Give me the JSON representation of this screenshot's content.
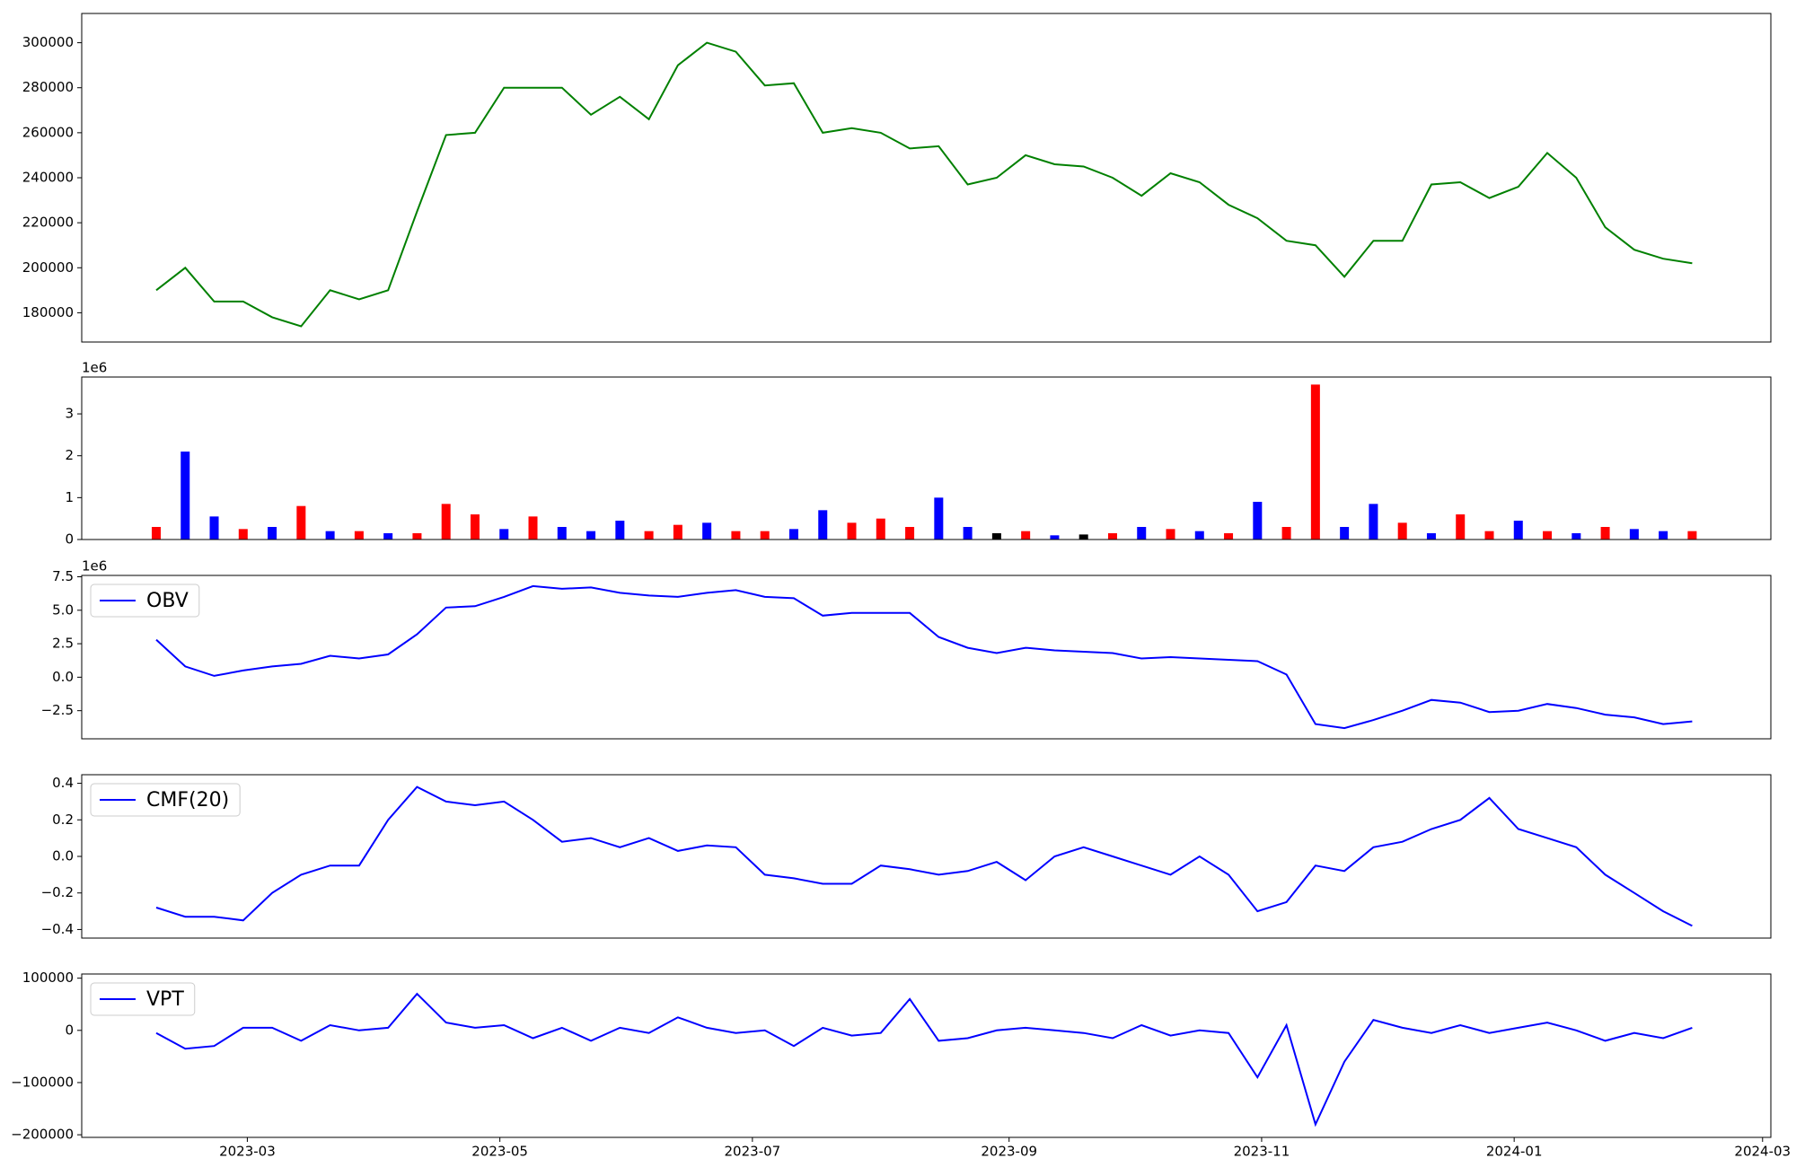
{
  "chart_data": [
    {
      "type": "line",
      "x": [
        "2023-02-07",
        "2023-02-14",
        "2023-02-21",
        "2023-02-28",
        "2023-03-07",
        "2023-03-14",
        "2023-03-21",
        "2023-03-28",
        "2023-04-04",
        "2023-04-11",
        "2023-04-18",
        "2023-04-25",
        "2023-05-02",
        "2023-05-09",
        "2023-05-16",
        "2023-05-23",
        "2023-05-30",
        "2023-06-06",
        "2023-06-13",
        "2023-06-20",
        "2023-06-27",
        "2023-07-04",
        "2023-07-11",
        "2023-07-18",
        "2023-07-25",
        "2023-08-01",
        "2023-08-08",
        "2023-08-15",
        "2023-08-22",
        "2023-08-29",
        "2023-09-05",
        "2023-09-12",
        "2023-09-19",
        "2023-09-26",
        "2023-10-03",
        "2023-10-10",
        "2023-10-17",
        "2023-10-24",
        "2023-10-31",
        "2023-11-07",
        "2023-11-14",
        "2023-11-21",
        "2023-11-28",
        "2023-12-05",
        "2023-12-12",
        "2023-12-19",
        "2023-12-26",
        "2024-01-02",
        "2024-01-09",
        "2024-01-16",
        "2024-01-23",
        "2024-01-30",
        "2024-02-06",
        "2024-02-13"
      ],
      "series": [
        {
          "color": "#008000",
          "values": [
            190000,
            200000,
            185000,
            185000,
            178000,
            174000,
            190000,
            186000,
            190000,
            225000,
            259000,
            260000,
            280000,
            280000,
            280000,
            268000,
            276000,
            266000,
            290000,
            300000,
            296000,
            281000,
            282000,
            260000,
            262000,
            260000,
            253000,
            254000,
            237000,
            240000,
            250000,
            246000,
            245000,
            240000,
            232000,
            242000,
            238000,
            228000,
            222000,
            212000,
            210000,
            196000,
            212000,
            212000,
            237000,
            238000,
            231000,
            236000,
            251000,
            240000,
            218000,
            208000,
            204000,
            202000
          ]
        }
      ],
      "xlim": [
        "2023-01-20",
        "2024-03-03"
      ],
      "ylim": [
        167000,
        313000
      ],
      "yticks": [
        180000,
        200000,
        220000,
        240000,
        260000,
        280000,
        300000
      ]
    },
    {
      "type": "bar",
      "x": [
        "2023-02-07",
        "2023-02-14",
        "2023-02-21",
        "2023-02-28",
        "2023-03-07",
        "2023-03-14",
        "2023-03-21",
        "2023-03-28",
        "2023-04-04",
        "2023-04-11",
        "2023-04-18",
        "2023-04-25",
        "2023-05-02",
        "2023-05-09",
        "2023-05-16",
        "2023-05-23",
        "2023-05-30",
        "2023-06-06",
        "2023-06-13",
        "2023-06-20",
        "2023-06-27",
        "2023-07-04",
        "2023-07-11",
        "2023-07-18",
        "2023-07-25",
        "2023-08-01",
        "2023-08-08",
        "2023-08-15",
        "2023-08-22",
        "2023-08-29",
        "2023-09-05",
        "2023-09-12",
        "2023-09-19",
        "2023-09-26",
        "2023-10-03",
        "2023-10-10",
        "2023-10-17",
        "2023-10-24",
        "2023-10-31",
        "2023-11-07",
        "2023-11-14",
        "2023-11-21",
        "2023-11-28",
        "2023-12-05",
        "2023-12-12",
        "2023-12-19",
        "2023-12-26",
        "2024-01-02",
        "2024-01-09",
        "2024-01-16",
        "2024-01-23",
        "2024-01-30",
        "2024-02-06",
        "2024-02-13"
      ],
      "series": [
        {
          "values": [
            300000,
            2100000,
            550000,
            250000,
            300000,
            800000,
            200000,
            200000,
            150000,
            150000,
            850000,
            600000,
            250000,
            550000,
            300000,
            200000,
            450000,
            200000,
            350000,
            400000,
            200000,
            200000,
            250000,
            700000,
            400000,
            500000,
            300000,
            1000000,
            300000,
            150000,
            200000,
            100000,
            120000,
            150000,
            300000,
            250000,
            200000,
            150000,
            900000,
            300000,
            3700000,
            300000,
            850000,
            400000,
            150000,
            600000,
            200000,
            450000,
            200000,
            150000,
            300000,
            250000,
            200000,
            200000
          ],
          "colors": [
            "#ff0000",
            "#0000ff",
            "#0000ff",
            "#ff0000",
            "#0000ff",
            "#ff0000",
            "#0000ff",
            "#ff0000",
            "#0000ff",
            "#ff0000",
            "#ff0000",
            "#ff0000",
            "#0000ff",
            "#ff0000",
            "#0000ff",
            "#0000ff",
            "#0000ff",
            "#ff0000",
            "#ff0000",
            "#0000ff",
            "#ff0000",
            "#ff0000",
            "#0000ff",
            "#0000ff",
            "#ff0000",
            "#ff0000",
            "#ff0000",
            "#0000ff",
            "#0000ff",
            "#000000",
            "#ff0000",
            "#0000ff",
            "#000000",
            "#ff0000",
            "#0000ff",
            "#ff0000",
            "#0000ff",
            "#ff0000",
            "#0000ff",
            "#ff0000",
            "#ff0000",
            "#0000ff",
            "#0000ff",
            "#ff0000",
            "#0000ff",
            "#ff0000",
            "#ff0000",
            "#0000ff",
            "#ff0000",
            "#0000ff",
            "#ff0000",
            "#0000ff",
            "#0000ff",
            "#ff0000"
          ]
        }
      ],
      "xlim": [
        "2023-01-20",
        "2024-03-03"
      ],
      "ylim": [
        0,
        3880000
      ],
      "offset_text": "1e6",
      "yticks": [
        {
          "value": 0,
          "label": "0"
        },
        {
          "value": 1000000,
          "label": "1"
        },
        {
          "value": 2000000,
          "label": "2"
        },
        {
          "value": 3000000,
          "label": "3"
        }
      ]
    },
    {
      "type": "line",
      "x": [
        "2023-02-07",
        "2023-02-14",
        "2023-02-21",
        "2023-02-28",
        "2023-03-07",
        "2023-03-14",
        "2023-03-21",
        "2023-03-28",
        "2023-04-04",
        "2023-04-11",
        "2023-04-18",
        "2023-04-25",
        "2023-05-02",
        "2023-05-09",
        "2023-05-16",
        "2023-05-23",
        "2023-05-30",
        "2023-06-06",
        "2023-06-13",
        "2023-06-20",
        "2023-06-27",
        "2023-07-04",
        "2023-07-11",
        "2023-07-18",
        "2023-07-25",
        "2023-08-01",
        "2023-08-08",
        "2023-08-15",
        "2023-08-22",
        "2023-08-29",
        "2023-09-05",
        "2023-09-12",
        "2023-09-19",
        "2023-09-26",
        "2023-10-03",
        "2023-10-10",
        "2023-10-17",
        "2023-10-24",
        "2023-10-31",
        "2023-11-07",
        "2023-11-14",
        "2023-11-21",
        "2023-11-28",
        "2023-12-05",
        "2023-12-12",
        "2023-12-19",
        "2023-12-26",
        "2024-01-02",
        "2024-01-09",
        "2024-01-16",
        "2024-01-23",
        "2024-01-30",
        "2024-02-06",
        "2024-02-13"
      ],
      "series": [
        {
          "name": "OBV",
          "color": "#0000ff",
          "values": [
            2800000,
            800000,
            100000,
            500000,
            800000,
            1000000,
            1600000,
            1400000,
            1700000,
            3200000,
            5200000,
            5300000,
            6000000,
            6800000,
            6600000,
            6700000,
            6300000,
            6100000,
            6000000,
            6300000,
            6500000,
            6000000,
            5900000,
            4600000,
            4800000,
            4800000,
            4800000,
            3000000,
            2200000,
            1800000,
            2200000,
            2000000,
            1900000,
            1800000,
            1400000,
            1500000,
            1400000,
            1300000,
            1200000,
            200000,
            -3500000,
            -3800000,
            -3200000,
            -2500000,
            -1700000,
            -1900000,
            -2600000,
            -2500000,
            -2000000,
            -2300000,
            -2800000,
            -3000000,
            -3500000,
            -3300000
          ]
        }
      ],
      "xlim": [
        "2023-01-20",
        "2024-03-03"
      ],
      "ylim": [
        -4600000,
        7600000
      ],
      "offset_text": "1e6",
      "legend": "upper left",
      "yticks": [
        {
          "value": -2500000,
          "label": "−2.5"
        },
        {
          "value": 0,
          "label": "0.0"
        },
        {
          "value": 2500000,
          "label": "2.5"
        },
        {
          "value": 5000000,
          "label": "5.0"
        },
        {
          "value": 7500000,
          "label": "7.5"
        }
      ]
    },
    {
      "type": "line",
      "x": [
        "2023-02-07",
        "2023-02-14",
        "2023-02-21",
        "2023-02-28",
        "2023-03-07",
        "2023-03-14",
        "2023-03-21",
        "2023-03-28",
        "2023-04-04",
        "2023-04-11",
        "2023-04-18",
        "2023-04-25",
        "2023-05-02",
        "2023-05-09",
        "2023-05-16",
        "2023-05-23",
        "2023-05-30",
        "2023-06-06",
        "2023-06-13",
        "2023-06-20",
        "2023-06-27",
        "2023-07-04",
        "2023-07-11",
        "2023-07-18",
        "2023-07-25",
        "2023-08-01",
        "2023-08-08",
        "2023-08-15",
        "2023-08-22",
        "2023-08-29",
        "2023-09-05",
        "2023-09-12",
        "2023-09-19",
        "2023-09-26",
        "2023-10-03",
        "2023-10-10",
        "2023-10-17",
        "2023-10-24",
        "2023-10-31",
        "2023-11-07",
        "2023-11-14",
        "2023-11-21",
        "2023-11-28",
        "2023-12-05",
        "2023-12-12",
        "2023-12-19",
        "2023-12-26",
        "2024-01-02",
        "2024-01-09",
        "2024-01-16",
        "2024-01-23",
        "2024-01-30",
        "2024-02-06",
        "2024-02-13"
      ],
      "series": [
        {
          "name": "CMF(20)",
          "color": "#0000ff",
          "values": [
            -0.28,
            -0.33,
            -0.33,
            -0.35,
            -0.2,
            -0.1,
            -0.05,
            -0.05,
            0.2,
            0.38,
            0.3,
            0.28,
            0.3,
            0.2,
            0.08,
            0.1,
            0.05,
            0.1,
            0.03,
            0.06,
            0.05,
            -0.1,
            -0.12,
            -0.15,
            -0.15,
            -0.05,
            -0.07,
            -0.1,
            -0.08,
            -0.03,
            -0.13,
            0.0,
            0.05,
            0.0,
            -0.05,
            -0.1,
            0.0,
            -0.1,
            -0.3,
            -0.25,
            -0.05,
            -0.08,
            0.05,
            0.08,
            0.15,
            0.2,
            0.32,
            0.15,
            0.1,
            0.05,
            -0.1,
            -0.2,
            -0.3,
            -0.38
          ]
        }
      ],
      "xlim": [
        "2023-01-20",
        "2024-03-03"
      ],
      "ylim": [
        -0.447,
        0.447
      ],
      "legend": "upper left",
      "yticks": [
        {
          "value": -0.4,
          "label": "−0.4"
        },
        {
          "value": -0.2,
          "label": "−0.2"
        },
        {
          "value": 0,
          "label": "0.0"
        },
        0.2,
        0.4
      ]
    },
    {
      "type": "line",
      "x": [
        "2023-02-07",
        "2023-02-14",
        "2023-02-21",
        "2023-02-28",
        "2023-03-07",
        "2023-03-14",
        "2023-03-21",
        "2023-03-28",
        "2023-04-04",
        "2023-04-11",
        "2023-04-18",
        "2023-04-25",
        "2023-05-02",
        "2023-05-09",
        "2023-05-16",
        "2023-05-23",
        "2023-05-30",
        "2023-06-06",
        "2023-06-13",
        "2023-06-20",
        "2023-06-27",
        "2023-07-04",
        "2023-07-11",
        "2023-07-18",
        "2023-07-25",
        "2023-08-01",
        "2023-08-08",
        "2023-08-15",
        "2023-08-22",
        "2023-08-29",
        "2023-09-05",
        "2023-09-12",
        "2023-09-19",
        "2023-09-26",
        "2023-10-03",
        "2023-10-10",
        "2023-10-17",
        "2023-10-24",
        "2023-10-31",
        "2023-11-07",
        "2023-11-14",
        "2023-11-21",
        "2023-11-28",
        "2023-12-05",
        "2023-12-12",
        "2023-12-19",
        "2023-12-26",
        "2024-01-02",
        "2024-01-09",
        "2024-01-16",
        "2024-01-23",
        "2024-01-30",
        "2024-02-06",
        "2024-02-13"
      ],
      "series": [
        {
          "name": "VPT",
          "color": "#0000ff",
          "values": [
            -5000,
            -35000,
            -30000,
            5000,
            5000,
            -20000,
            10000,
            0,
            5000,
            70000,
            15000,
            5000,
            10000,
            -15000,
            5000,
            -20000,
            5000,
            -5000,
            25000,
            5000,
            -5000,
            0,
            -30000,
            5000,
            -10000,
            -5000,
            60000,
            -20000,
            -15000,
            0,
            5000,
            0,
            -5000,
            -15000,
            10000,
            -10000,
            0,
            -5000,
            -90000,
            10000,
            -180000,
            -60000,
            20000,
            5000,
            -5000,
            10000,
            -5000,
            5000,
            15000,
            0,
            -20000,
            -5000,
            -15000,
            5000
          ]
        }
      ],
      "xlim": [
        "2023-01-20",
        "2024-03-03"
      ],
      "ylim": [
        -205000,
        108000
      ],
      "legend": "upper left",
      "yticks": [
        {
          "value": -200000,
          "label": "−200000"
        },
        {
          "value": -100000,
          "label": "−100000"
        },
        0,
        100000
      ],
      "xticks": [
        {
          "value": "2023-03-01",
          "label": "2023-03"
        },
        {
          "value": "2023-05-01",
          "label": "2023-05"
        },
        {
          "value": "2023-07-01",
          "label": "2023-07"
        },
        {
          "value": "2023-09-01",
          "label": "2023-09"
        },
        {
          "value": "2023-11-01",
          "label": "2023-11"
        },
        {
          "value": "2024-01-01",
          "label": "2024-01"
        },
        {
          "value": "2024-03-01",
          "label": "2024-03"
        }
      ]
    }
  ]
}
